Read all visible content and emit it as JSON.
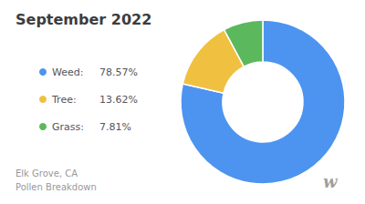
{
  "chart_data": {
    "type": "pie",
    "title": "September 2022",
    "subtitle": "Elk Grove, CA\nPollen Breakdown",
    "categories": [
      "Weed:",
      "Tree:",
      "Grass:"
    ],
    "values": [
      78.57,
      13.62,
      7.81
    ],
    "value_labels": [
      "78.57%",
      "13.62%",
      "7.81%"
    ],
    "colors": [
      "#4d94f0",
      "#f0c040",
      "#5cb85c"
    ],
    "legend": "left",
    "data_labels": false,
    "annotations": [
      "w"
    ]
  }
}
